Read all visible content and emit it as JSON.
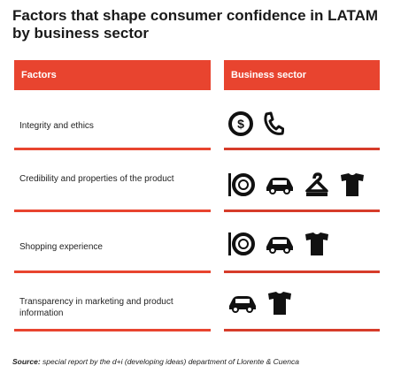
{
  "title": "Factors that shape consumer confidence in LATAM by business sector",
  "headers": {
    "factors": "Factors",
    "sector": "Business sector"
  },
  "rows": [
    {
      "factor": "Integrity and ethics",
      "icons": [
        "dollar-coin-icon",
        "phone-icon"
      ]
    },
    {
      "factor": "Credibility and properties of the product",
      "icons": [
        "washing-machine-icon",
        "car-icon",
        "clothes-hanger-icon",
        "tshirt-icon"
      ]
    },
    {
      "factor": "Shopping experience",
      "icons": [
        "washing-machine-icon",
        "car-icon",
        "tshirt-icon"
      ]
    },
    {
      "factor": "Transparency in marketing and product information",
      "icons": [
        "car-icon",
        "tshirt-icon"
      ]
    }
  ],
  "source": {
    "label": "Source:",
    "text": "special report by the d+i (developing ideas) department of Llorente & Cuenca"
  },
  "colors": {
    "accent": "#e8442f",
    "icon": "#111111"
  }
}
